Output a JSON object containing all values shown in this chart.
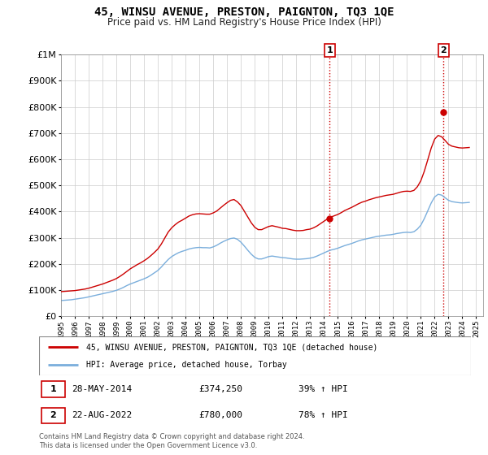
{
  "title": "45, WINSU AVENUE, PRESTON, PAIGNTON, TQ3 1QE",
  "subtitle": "Price paid vs. HM Land Registry's House Price Index (HPI)",
  "legend_line1": "45, WINSU AVENUE, PRESTON, PAIGNTON, TQ3 1QE (detached house)",
  "legend_line2": "HPI: Average price, detached house, Torbay",
  "annotation1_label": "1",
  "annotation1_date": "28-MAY-2014",
  "annotation1_price": 374250,
  "annotation1_hpi": "39% ↑ HPI",
  "annotation2_label": "2",
  "annotation2_date": "22-AUG-2022",
  "annotation2_price": 780000,
  "annotation2_hpi": "78% ↑ HPI",
  "footnote": "Contains HM Land Registry data © Crown copyright and database right 2024.\nThis data is licensed under the Open Government Licence v3.0.",
  "house_color": "#cc0000",
  "hpi_color": "#7aaedc",
  "vline_color": "#cc0000",
  "annotation_box_color": "#cc0000",
  "ylim": [
    0,
    1000000
  ],
  "xlim_start": 1995.5,
  "xlim_end": 2025.5,
  "transaction1_x": 2014.41,
  "transaction1_y": 374250,
  "transaction2_x": 2022.64,
  "transaction2_y": 780000,
  "hpi_data_x": [
    1995.0,
    1995.25,
    1995.5,
    1995.75,
    1996.0,
    1996.25,
    1996.5,
    1996.75,
    1997.0,
    1997.25,
    1997.5,
    1997.75,
    1998.0,
    1998.25,
    1998.5,
    1998.75,
    1999.0,
    1999.25,
    1999.5,
    1999.75,
    2000.0,
    2000.25,
    2000.5,
    2000.75,
    2001.0,
    2001.25,
    2001.5,
    2001.75,
    2002.0,
    2002.25,
    2002.5,
    2002.75,
    2003.0,
    2003.25,
    2003.5,
    2003.75,
    2004.0,
    2004.25,
    2004.5,
    2004.75,
    2005.0,
    2005.25,
    2005.5,
    2005.75,
    2006.0,
    2006.25,
    2006.5,
    2006.75,
    2007.0,
    2007.25,
    2007.5,
    2007.75,
    2008.0,
    2008.25,
    2008.5,
    2008.75,
    2009.0,
    2009.25,
    2009.5,
    2009.75,
    2010.0,
    2010.25,
    2010.5,
    2010.75,
    2011.0,
    2011.25,
    2011.5,
    2011.75,
    2012.0,
    2012.25,
    2012.5,
    2012.75,
    2013.0,
    2013.25,
    2013.5,
    2013.75,
    2014.0,
    2014.25,
    2014.5,
    2014.75,
    2015.0,
    2015.25,
    2015.5,
    2015.75,
    2016.0,
    2016.25,
    2016.5,
    2016.75,
    2017.0,
    2017.25,
    2017.5,
    2017.75,
    2018.0,
    2018.25,
    2018.5,
    2018.75,
    2019.0,
    2019.25,
    2019.5,
    2019.75,
    2020.0,
    2020.25,
    2020.5,
    2020.75,
    2021.0,
    2021.25,
    2021.5,
    2021.75,
    2022.0,
    2022.25,
    2022.5,
    2022.75,
    2023.0,
    2023.25,
    2023.5,
    2023.75,
    2024.0,
    2024.25,
    2024.5
  ],
  "hpi_data_y": [
    60000,
    61000,
    62000,
    63000,
    65000,
    67000,
    69000,
    71000,
    74000,
    77000,
    80000,
    83000,
    86000,
    89000,
    92000,
    95000,
    99000,
    104000,
    110000,
    117000,
    123000,
    128000,
    133000,
    138000,
    143000,
    149000,
    157000,
    166000,
    175000,
    188000,
    203000,
    217000,
    228000,
    236000,
    243000,
    248000,
    252000,
    257000,
    260000,
    262000,
    263000,
    262000,
    262000,
    261000,
    265000,
    271000,
    279000,
    286000,
    292000,
    297000,
    299000,
    294000,
    283000,
    268000,
    252000,
    237000,
    225000,
    219000,
    219000,
    223000,
    228000,
    230000,
    228000,
    226000,
    224000,
    223000,
    221000,
    219000,
    218000,
    218000,
    219000,
    220000,
    222000,
    225000,
    230000,
    236000,
    242000,
    248000,
    253000,
    256000,
    260000,
    265000,
    270000,
    274000,
    278000,
    283000,
    288000,
    292000,
    295000,
    298000,
    301000,
    304000,
    306000,
    308000,
    310000,
    311000,
    313000,
    316000,
    318000,
    320000,
    321000,
    320000,
    323000,
    333000,
    348000,
    373000,
    403000,
    433000,
    456000,
    466000,
    463000,
    453000,
    443000,
    438000,
    436000,
    434000,
    433000,
    434000,
    435000
  ],
  "house_data_x": [
    1995.0,
    1995.25,
    1995.5,
    1995.75,
    1996.0,
    1996.25,
    1996.5,
    1996.75,
    1997.0,
    1997.25,
    1997.5,
    1997.75,
    1998.0,
    1998.25,
    1998.5,
    1998.75,
    1999.0,
    1999.25,
    1999.5,
    1999.75,
    2000.0,
    2000.25,
    2000.5,
    2000.75,
    2001.0,
    2001.25,
    2001.5,
    2001.75,
    2002.0,
    2002.25,
    2002.5,
    2002.75,
    2003.0,
    2003.25,
    2003.5,
    2003.75,
    2004.0,
    2004.25,
    2004.5,
    2004.75,
    2005.0,
    2005.25,
    2005.5,
    2005.75,
    2006.0,
    2006.25,
    2006.5,
    2006.75,
    2007.0,
    2007.25,
    2007.5,
    2007.75,
    2008.0,
    2008.25,
    2008.5,
    2008.75,
    2009.0,
    2009.25,
    2009.5,
    2009.75,
    2010.0,
    2010.25,
    2010.5,
    2010.75,
    2011.0,
    2011.25,
    2011.5,
    2011.75,
    2012.0,
    2012.25,
    2012.5,
    2012.75,
    2013.0,
    2013.25,
    2013.5,
    2013.75,
    2014.0,
    2014.25,
    2014.5,
    2014.75,
    2015.0,
    2015.25,
    2015.5,
    2015.75,
    2016.0,
    2016.25,
    2016.5,
    2016.75,
    2017.0,
    2017.25,
    2017.5,
    2017.75,
    2018.0,
    2018.25,
    2018.5,
    2018.75,
    2019.0,
    2019.25,
    2019.5,
    2019.75,
    2020.0,
    2020.25,
    2020.5,
    2020.75,
    2021.0,
    2021.25,
    2021.5,
    2021.75,
    2022.0,
    2022.25,
    2022.5,
    2022.75,
    2023.0,
    2023.25,
    2023.5,
    2023.75,
    2024.0,
    2024.25,
    2024.5
  ],
  "house_data_y": [
    94000,
    95000,
    96000,
    97000,
    98000,
    100000,
    102000,
    104000,
    107000,
    111000,
    115000,
    119000,
    123000,
    128000,
    133000,
    138000,
    144000,
    152000,
    161000,
    171000,
    181000,
    189000,
    197000,
    204000,
    212000,
    221000,
    232000,
    244000,
    257000,
    276000,
    299000,
    322000,
    338000,
    350000,
    360000,
    367000,
    375000,
    383000,
    388000,
    391000,
    392000,
    391000,
    390000,
    390000,
    395000,
    402000,
    413000,
    424000,
    434000,
    443000,
    446000,
    437000,
    423000,
    401000,
    379000,
    357000,
    340000,
    331000,
    331000,
    337000,
    343000,
    346000,
    343000,
    340000,
    336000,
    335000,
    332000,
    329000,
    327000,
    327000,
    328000,
    331000,
    333000,
    338000,
    345000,
    354000,
    363000,
    372000,
    379000,
    384000,
    389000,
    396000,
    404000,
    410000,
    416000,
    423000,
    430000,
    436000,
    440000,
    445000,
    449000,
    453000,
    456000,
    459000,
    462000,
    464000,
    466000,
    470000,
    474000,
    477000,
    478000,
    477000,
    481000,
    495000,
    518000,
    554000,
    598000,
    643000,
    677000,
    691000,
    686000,
    672000,
    657000,
    650000,
    647000,
    644000,
    643000,
    644000,
    645000
  ]
}
